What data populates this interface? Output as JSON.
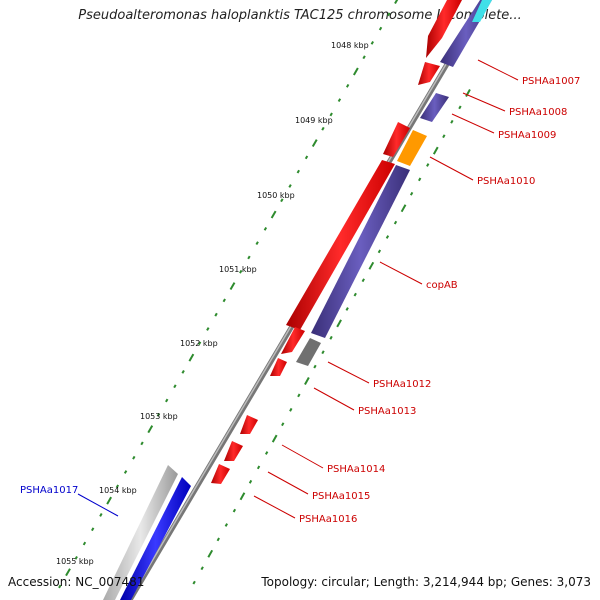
{
  "title": "Pseudoalteromonas haloplanktis TAC125 chromosome I, complete...",
  "footer": {
    "accession": "Accession: NC_007481",
    "summary": "Topology: circular; Length: 3,214,944 bp; Genes: 3,073"
  },
  "scale_labels": [
    "1048 kbp",
    "1049 kbp",
    "1050 kbp",
    "1051 kbp",
    "1052 kbp",
    "1053 kbp",
    "1054 kbp",
    "1055 kbp"
  ],
  "genes": [
    {
      "label": "PSHAa1007",
      "color": "#cc0000"
    },
    {
      "label": "PSHAa1008",
      "color": "#cc0000"
    },
    {
      "label": "PSHAa1009",
      "color": "#cc0000"
    },
    {
      "label": "PSHAa1010",
      "color": "#cc0000"
    },
    {
      "label": "copAB",
      "color": "#cc0000"
    },
    {
      "label": "PSHAa1012",
      "color": "#cc0000"
    },
    {
      "label": "PSHAa1013",
      "color": "#cc0000"
    },
    {
      "label": "PSHAa1014",
      "color": "#cc0000"
    },
    {
      "label": "PSHAa1015",
      "color": "#cc0000"
    },
    {
      "label": "PSHAa1016",
      "color": "#cc0000"
    },
    {
      "label": "PSHAa1017",
      "color": "#0000cc"
    }
  ],
  "colors": {
    "cds": "#ff1a1a",
    "cds_purple": "#4a3d8f",
    "orange": "#ff9900",
    "grey_feature": "#707070",
    "blue_gene": "#1a1aee",
    "backbone": "#8a8a8a",
    "tick": "#2e8b2e"
  }
}
